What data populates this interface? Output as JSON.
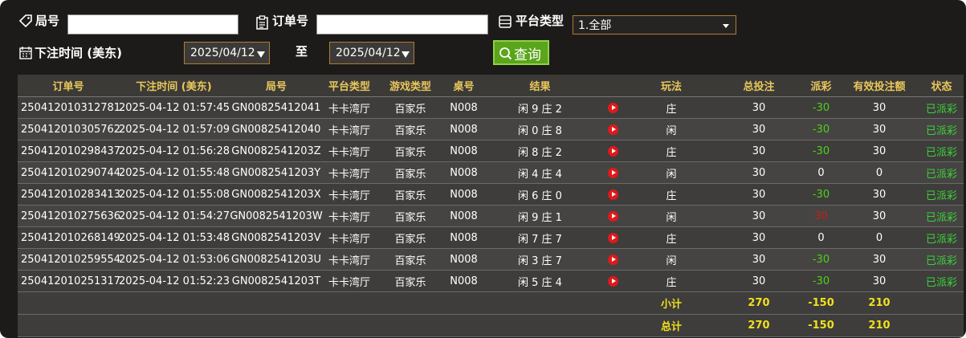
{
  "filters": {
    "round_label": "局号",
    "order_label": "订单号",
    "platform_label": "平台类型",
    "platform_value": "1.全部",
    "time_label": "下注时间 (美东)",
    "start_date": "2025/04/12",
    "to_label": "至",
    "end_date": "2025/04/12",
    "query_button": "查询"
  },
  "table": {
    "headers": [
      "订单号",
      "下注时间 (美东)",
      "局号",
      "平台类型",
      "游戏类型",
      "桌号",
      "结果",
      "玩法",
      "总投注",
      "派彩",
      "有效投注额",
      "状态"
    ],
    "rows": [
      [
        "250412010312781",
        "2025-04-12 01:57:45",
        "GN00825412041",
        "卡卡湾厅",
        "百家乐",
        "N008",
        "闲 9 庄 2",
        "庄",
        30,
        -30,
        30,
        "已派彩"
      ],
      [
        "250412010305762",
        "2025-04-12 01:57:09",
        "GN00825412040",
        "卡卡湾厅",
        "百家乐",
        "N008",
        "闲 0 庄 8",
        "闲",
        30,
        -30,
        30,
        "已派彩"
      ],
      [
        "250412010298437",
        "2025-04-12 01:56:28",
        "GN0082541203Z",
        "卡卡湾厅",
        "百家乐",
        "N008",
        "闲 8 庄 2",
        "庄",
        30,
        -30,
        30,
        "已派彩"
      ],
      [
        "250412010290744",
        "2025-04-12 01:55:48",
        "GN0082541203Y",
        "卡卡湾厅",
        "百家乐",
        "N008",
        "闲 4 庄 4",
        "闲",
        30,
        0,
        0,
        "已派彩"
      ],
      [
        "250412010283413",
        "2025-04-12 01:55:08",
        "GN0082541203X",
        "卡卡湾厅",
        "百家乐",
        "N008",
        "闲 6 庄 0",
        "庄",
        30,
        -30,
        30,
        "已派彩"
      ],
      [
        "250412010275636",
        "2025-04-12 01:54:27",
        "GN0082541203W",
        "卡卡湾厅",
        "百家乐",
        "N008",
        "闲 9 庄 1",
        "闲",
        30,
        30,
        30,
        "已派彩"
      ],
      [
        "250412010268149",
        "2025-04-12 01:53:48",
        "GN0082541203V",
        "卡卡湾厅",
        "百家乐",
        "N008",
        "闲 7 庄 7",
        "庄",
        30,
        0,
        0,
        "已派彩"
      ],
      [
        "250412010259554",
        "2025-04-12 01:53:06",
        "GN0082541203U",
        "卡卡湾厅",
        "百家乐",
        "N008",
        "闲 3 庄 7",
        "闲",
        30,
        -30,
        30,
        "已派彩"
      ],
      [
        "250412010251317",
        "2025-04-12 01:52:23",
        "GN0082541203T",
        "卡卡湾厅",
        "百家乐",
        "N008",
        "闲 5 庄 4",
        "庄",
        30,
        -30,
        30,
        "已派彩"
      ]
    ],
    "subtotal": {
      "label": "小计",
      "total_bet": 270,
      "payout": -150,
      "valid_bet": 210
    },
    "total": {
      "label": "总计",
      "total_bet": 270,
      "payout": -150,
      "valid_bet": 210
    }
  }
}
